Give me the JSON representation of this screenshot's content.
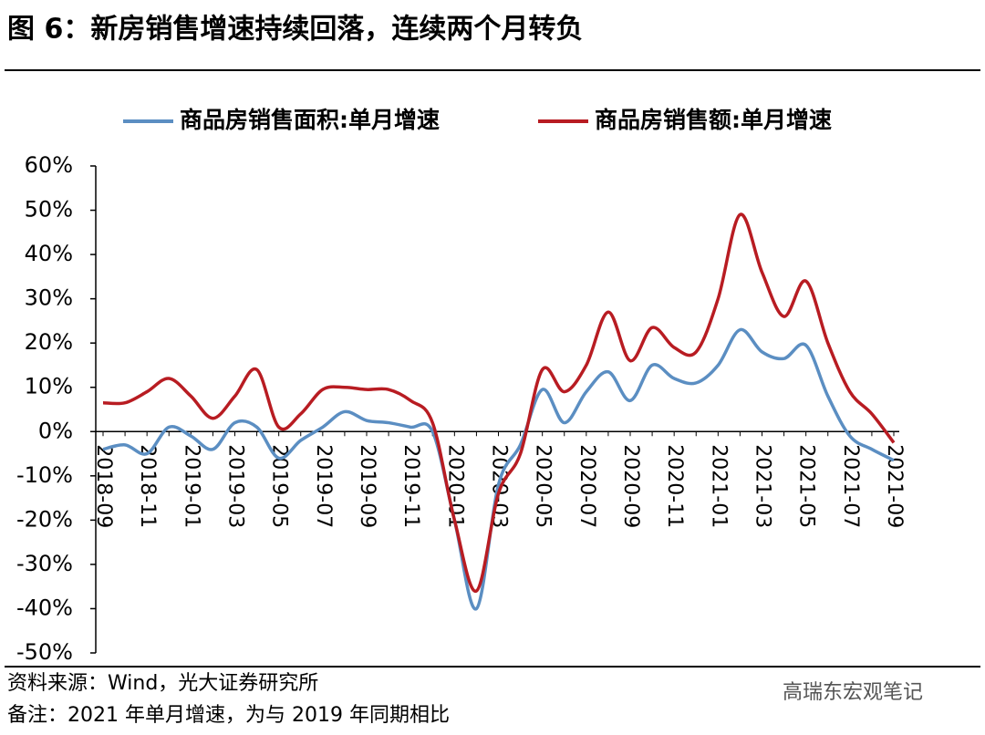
{
  "chart_data": {
    "type": "line",
    "title": "图 6：新房销售增速持续回落，连续两个月转负",
    "source": "资料来源：Wind，光大证券研究所",
    "note": "备注：2021 年单月增速，为与 2019 年同期相比",
    "watermark": "高瑞东宏观笔记",
    "categories": [
      "2018-09",
      null,
      "2018-11",
      null,
      "2019-01",
      null,
      "2019-03",
      null,
      "2019-05",
      null,
      "2019-07",
      null,
      "2019-09",
      null,
      "2019-11",
      null,
      "2020-01",
      null,
      "2020-03",
      null,
      "2020-05",
      null,
      "2020-07",
      null,
      "2020-09",
      null,
      "2020-11",
      null,
      "2021-01",
      null,
      "2021-03",
      null,
      "2021-05",
      null,
      "2021-07",
      null,
      "2021-09"
    ],
    "series": [
      {
        "name": "商品房销售面积:单月增速",
        "color": "#5b8ec2",
        "values": [
          -4,
          -3,
          -5,
          1,
          -1,
          -4,
          2,
          1,
          -6,
          -2,
          1,
          4.5,
          2.5,
          2,
          1,
          0,
          -20,
          -40,
          -12,
          -3,
          9.5,
          2,
          9,
          13.5,
          7,
          15,
          12,
          11,
          15,
          23,
          18,
          16.5,
          19.5,
          8,
          -1,
          -4,
          -6.5
        ]
      },
      {
        "name": "商品房销售额:单月增速",
        "color": "#b81c22",
        "values": [
          6.5,
          6.5,
          9,
          12,
          8,
          3,
          8,
          14,
          1,
          4,
          9.5,
          10,
          9.5,
          9.5,
          7,
          2,
          -20,
          -36,
          -14,
          -5,
          14,
          9,
          15,
          27,
          16,
          23.5,
          19,
          18,
          30,
          49,
          36,
          26,
          34,
          20,
          9,
          4,
          -2.5
        ]
      }
    ],
    "ylim": [
      -50,
      60
    ],
    "yticks": [
      {
        "value": -50,
        "label": "-50%"
      },
      {
        "value": -40,
        "label": "-40%"
      },
      {
        "value": -30,
        "label": "-30%"
      },
      {
        "value": -20,
        "label": "-20%"
      },
      {
        "value": -10,
        "label": "-10%"
      },
      {
        "value": 0,
        "label": "0%"
      },
      {
        "value": 10,
        "label": "10%"
      },
      {
        "value": 20,
        "label": "20%"
      },
      {
        "value": 30,
        "label": "30%"
      },
      {
        "value": 40,
        "label": "40%"
      },
      {
        "value": 50,
        "label": "50%"
      },
      {
        "value": 60,
        "label": "60%"
      }
    ],
    "legend": "top"
  }
}
